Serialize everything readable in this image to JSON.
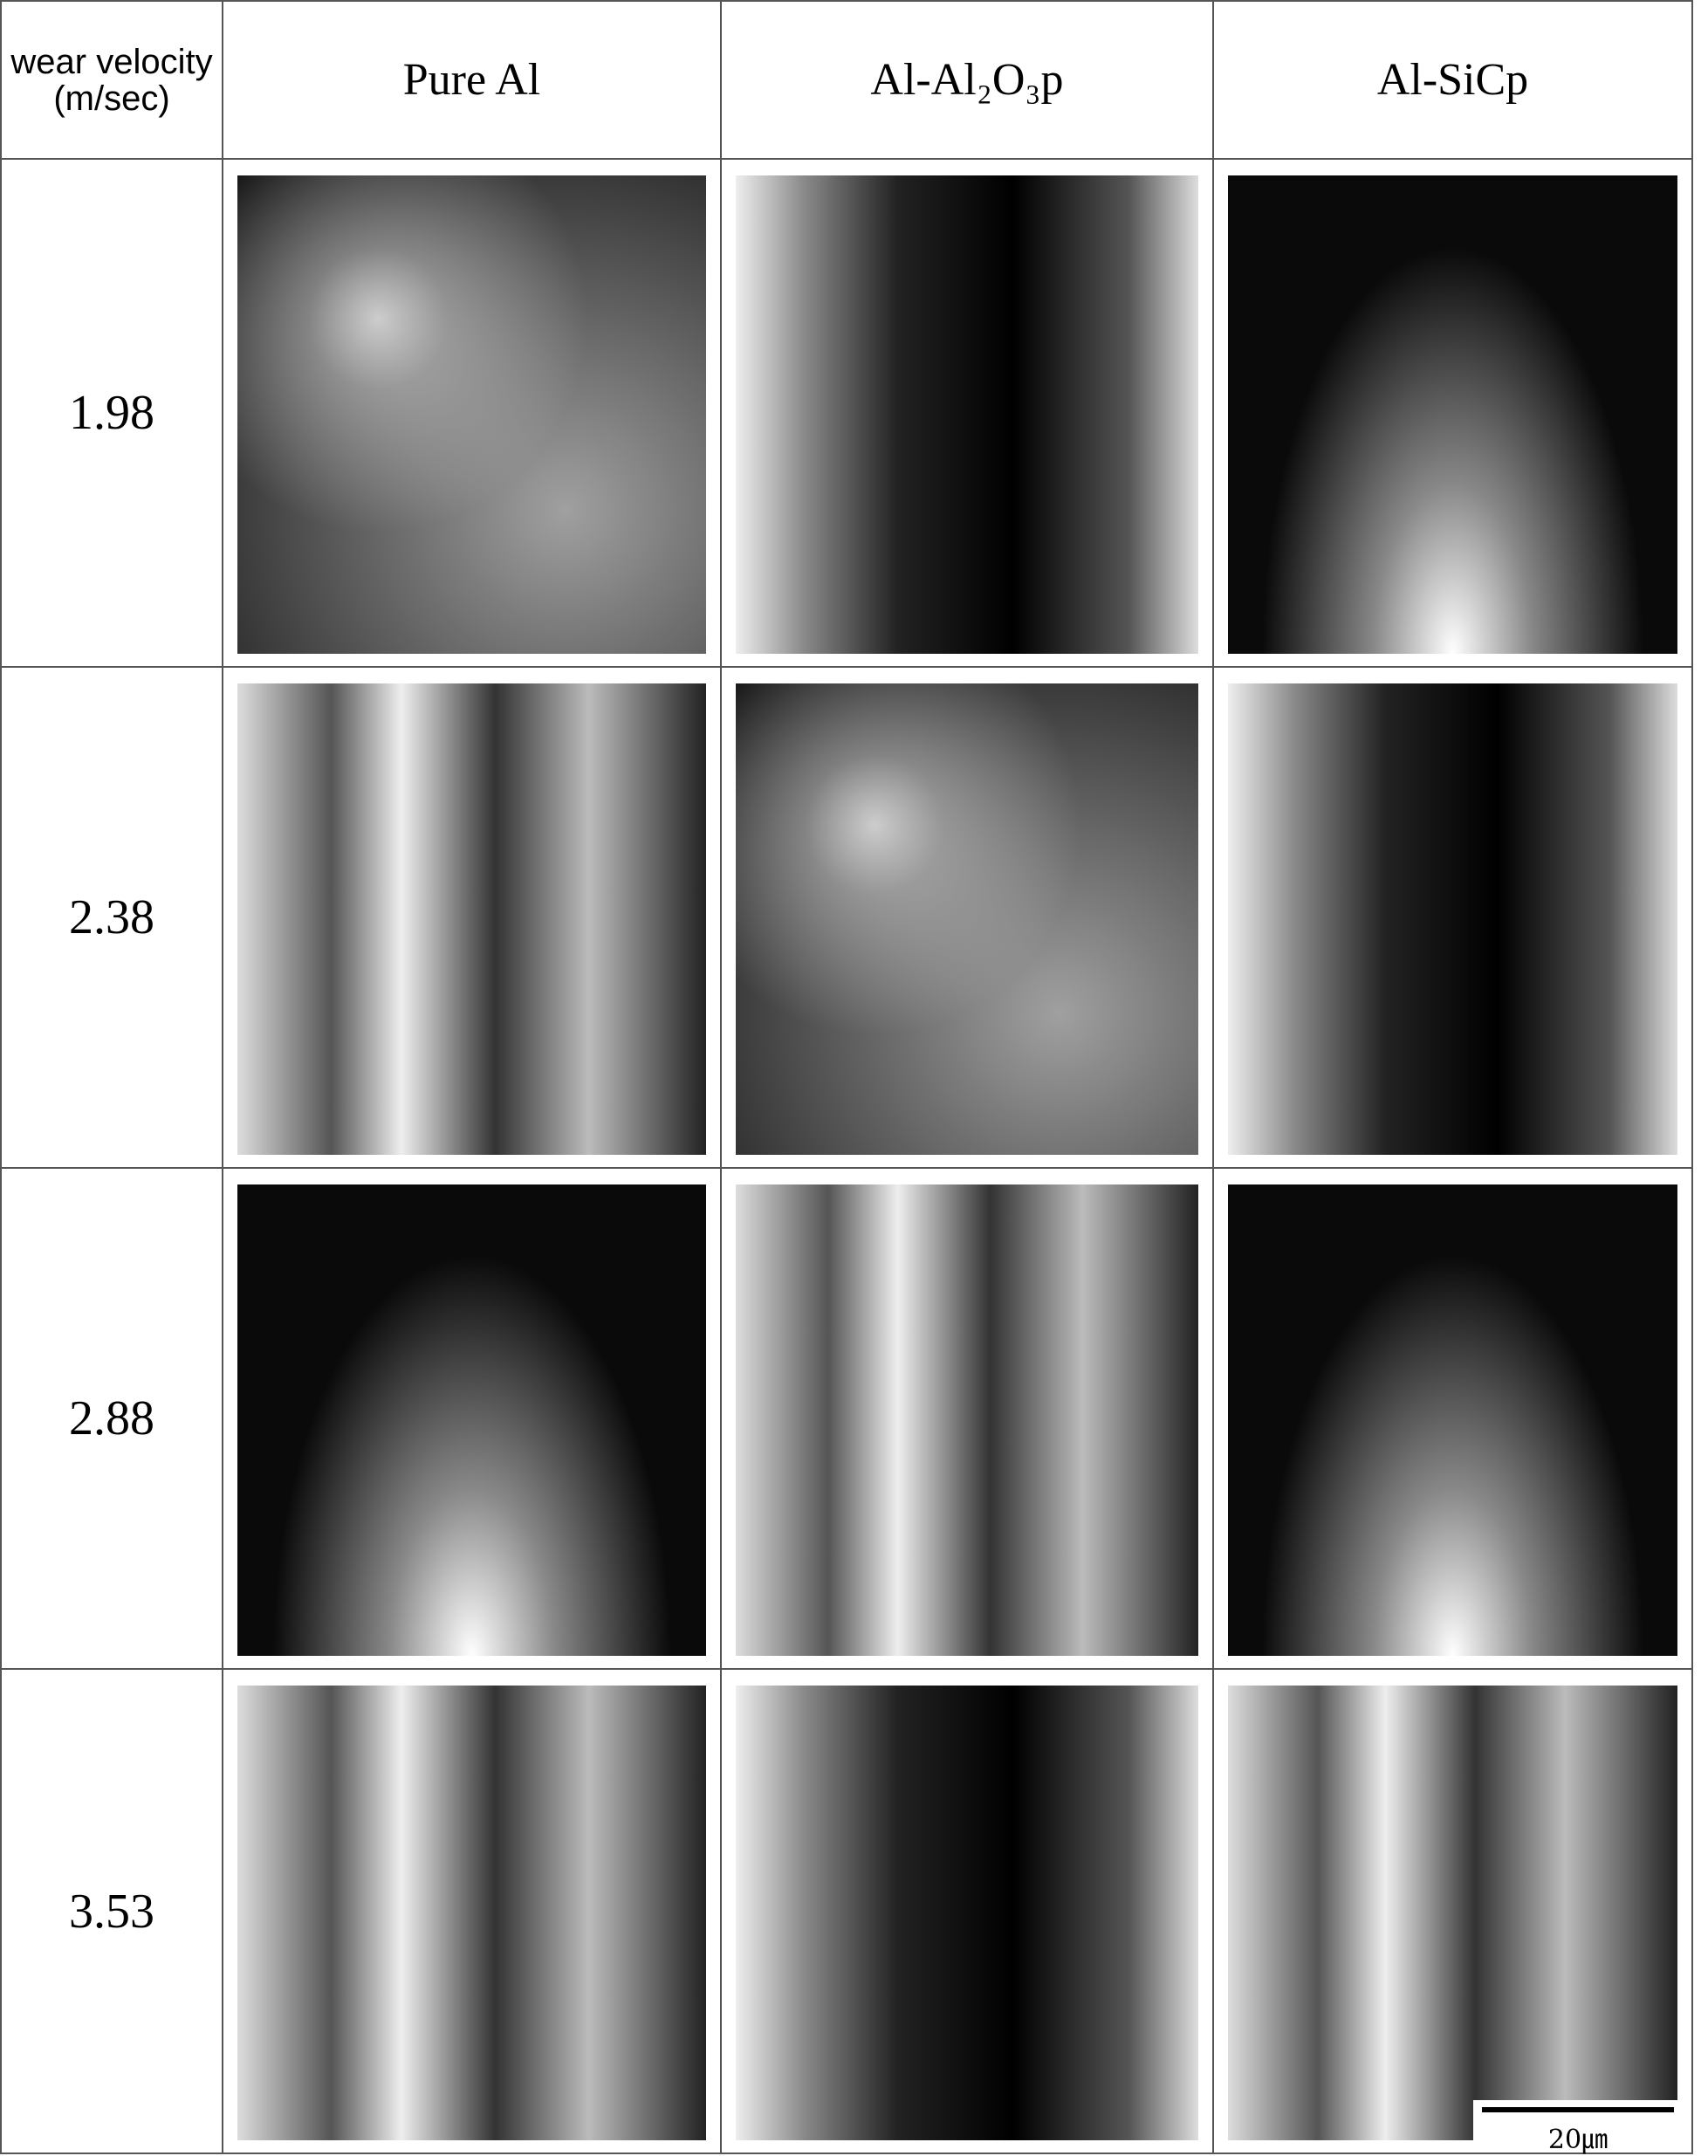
{
  "table": {
    "header": [
      "wear velocity (m/sec)",
      "Pure Al",
      "Al-Al₂O₃p",
      "Al-SiCp"
    ],
    "rows": [
      [
        "1.98"
      ],
      [
        "2.38"
      ],
      [
        "2.88"
      ],
      [
        "3.53"
      ]
    ],
    "scale_bar": "20㎛"
  }
}
